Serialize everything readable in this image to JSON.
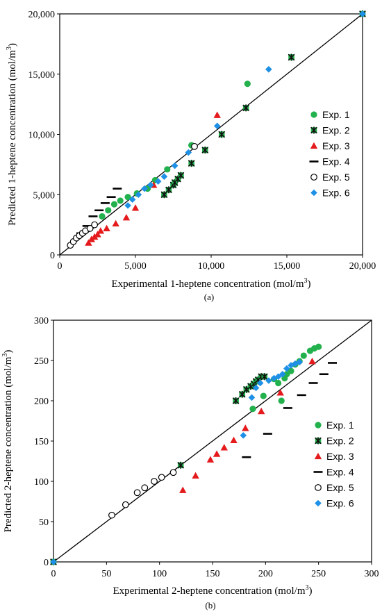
{
  "colors": {
    "exp1": "#22b14c",
    "exp2": "#22b14c",
    "exp3": "#e41a1c",
    "exp4": "#000000",
    "exp5": "#000000",
    "exp6": "#1e90e6"
  },
  "chart_data": [
    {
      "type": "scatter",
      "caption": "(a)",
      "xlabel_main": "Experimental 1-heptene concentration (mol/m",
      "xlabel_sup": "3",
      "ylabel_main": "Predicted 1-heptene concentration (mol/m",
      "ylabel_sup": "3",
      "xlim": [
        0,
        20000
      ],
      "ylim": [
        0,
        20000
      ],
      "xticks": [
        0,
        5000,
        10000,
        15000,
        20000
      ],
      "yticks": [
        0,
        5000,
        10000,
        15000,
        20000
      ],
      "xtick_labels": [
        "0",
        "5,000",
        "10,000",
        "15,000",
        "20,000"
      ],
      "ytick_labels": [
        "0",
        "5,000",
        "10,000",
        "15,000",
        "20,000"
      ],
      "grid": false,
      "legend": "right",
      "parity_line": [
        [
          0,
          0
        ],
        [
          20000,
          20000
        ]
      ],
      "series": [
        {
          "name": "Exp. 1",
          "marker": "circle",
          "color_key": "exp1",
          "points": [
            [
              2800,
              3200
            ],
            [
              3200,
              3700
            ],
            [
              3600,
              4200
            ],
            [
              4000,
              4500
            ],
            [
              4500,
              4800
            ],
            [
              5100,
              5100
            ],
            [
              5800,
              5500
            ],
            [
              6300,
              6200
            ],
            [
              7100,
              7100
            ],
            [
              8700,
              9100
            ],
            [
              12400,
              14200
            ]
          ]
        },
        {
          "name": "Exp. 2",
          "marker": "xsquare",
          "color_key": "exp2",
          "points": [
            [
              6900,
              5000
            ],
            [
              7200,
              5400
            ],
            [
              7500,
              5800
            ],
            [
              7600,
              6000
            ],
            [
              7800,
              6300
            ],
            [
              8000,
              6600
            ],
            [
              8700,
              7600
            ],
            [
              9600,
              8700
            ],
            [
              10700,
              10000
            ],
            [
              12300,
              12200
            ],
            [
              15300,
              16400
            ],
            [
              20000,
              20000
            ]
          ]
        },
        {
          "name": "Exp. 3",
          "marker": "triangle",
          "color_key": "exp3",
          "points": [
            [
              1900,
              1000
            ],
            [
              2100,
              1300
            ],
            [
              2300,
              1500
            ],
            [
              2500,
              1700
            ],
            [
              2700,
              2000
            ],
            [
              3100,
              2200
            ],
            [
              3700,
              2600
            ],
            [
              4400,
              3100
            ],
            [
              5000,
              3900
            ],
            [
              6200,
              5800
            ],
            [
              10400,
              11600
            ]
          ]
        },
        {
          "name": "Exp. 4",
          "marker": "dash",
          "color_key": "exp4",
          "points": [
            [
              1400,
              1800
            ],
            [
              1800,
              2400
            ],
            [
              2200,
              3200
            ],
            [
              2600,
              3700
            ],
            [
              3000,
              4300
            ],
            [
              3400,
              4800
            ],
            [
              3800,
              5500
            ]
          ]
        },
        {
          "name": "Exp. 5",
          "marker": "ocircle",
          "color_key": "exp5",
          "points": [
            [
              700,
              800
            ],
            [
              900,
              1100
            ],
            [
              1100,
              1400
            ],
            [
              1300,
              1600
            ],
            [
              1500,
              1800
            ],
            [
              1700,
              2000
            ],
            [
              2000,
              2200
            ],
            [
              2300,
              2500
            ],
            [
              8900,
              9000
            ]
          ]
        },
        {
          "name": "Exp. 6",
          "marker": "diamond",
          "color_key": "exp6",
          "points": [
            [
              4500,
              4100
            ],
            [
              4800,
              4600
            ],
            [
              5200,
              5000
            ],
            [
              5600,
              5500
            ],
            [
              6000,
              5800
            ],
            [
              6500,
              6100
            ],
            [
              6900,
              6500
            ],
            [
              7600,
              7400
            ],
            [
              8500,
              8500
            ],
            [
              10400,
              10700
            ],
            [
              13800,
              15400
            ],
            [
              20000,
              20000
            ]
          ]
        }
      ]
    },
    {
      "type": "scatter",
      "caption": "(b)",
      "xlabel_main": "Experimental 2-heptene concentration (mol/m",
      "xlabel_sup": "3",
      "ylabel_main": "Predicted 2-heptene concentration (mol/m",
      "ylabel_sup": "3",
      "xlim": [
        0,
        300
      ],
      "ylim": [
        0,
        300
      ],
      "xticks": [
        0,
        50,
        100,
        150,
        200,
        250,
        300
      ],
      "yticks": [
        0,
        50,
        100,
        150,
        200,
        250,
        300
      ],
      "xtick_labels": [
        "0",
        "50",
        "100",
        "150",
        "200",
        "250",
        "300"
      ],
      "ytick_labels": [
        "0",
        "50",
        "100",
        "150",
        "200",
        "250",
        "300"
      ],
      "grid": false,
      "legend": "right",
      "parity_line": [
        [
          0,
          0
        ],
        [
          300,
          300
        ]
      ],
      "series": [
        {
          "name": "Exp. 1",
          "marker": "circle",
          "color_key": "exp1",
          "points": [
            [
              188,
              190
            ],
            [
              198,
              206
            ],
            [
              208,
              227
            ],
            [
              212,
              222
            ],
            [
              215,
              200
            ],
            [
              218,
              228
            ],
            [
              220,
              233
            ],
            [
              224,
              237
            ],
            [
              228,
              245
            ],
            [
              232,
              249
            ],
            [
              236,
              256
            ],
            [
              242,
              262
            ],
            [
              246,
              265
            ],
            [
              250,
              267
            ]
          ]
        },
        {
          "name": "Exp. 2",
          "marker": "xsquare",
          "color_key": "exp2",
          "points": [
            [
              0,
              0
            ],
            [
              120,
              120
            ],
            [
              172,
              200
            ],
            [
              178,
              208
            ],
            [
              182,
              214
            ],
            [
              186,
              218
            ],
            [
              189,
              221
            ],
            [
              191,
              224
            ],
            [
              193,
              226
            ],
            [
              196,
              230
            ],
            [
              199,
              230
            ]
          ]
        },
        {
          "name": "Exp. 3",
          "marker": "triangle",
          "color_key": "exp3",
          "points": [
            [
              122,
              89
            ],
            [
              134,
              107
            ],
            [
              148,
              127
            ],
            [
              154,
              134
            ],
            [
              161,
              142
            ],
            [
              170,
              151
            ],
            [
              181,
              166
            ],
            [
              196,
              187
            ],
            [
              214,
              210
            ],
            [
              244,
              249
            ]
          ]
        },
        {
          "name": "Exp. 4",
          "marker": "dash",
          "color_key": "exp4",
          "points": [
            [
              182,
              130
            ],
            [
              202,
              159
            ],
            [
              221,
              191
            ],
            [
              234,
              207
            ],
            [
              245,
              222
            ],
            [
              255,
              233
            ],
            [
              263,
              247
            ]
          ]
        },
        {
          "name": "Exp. 5",
          "marker": "ocircle",
          "color_key": "exp5",
          "points": [
            [
              55,
              58
            ],
            [
              68,
              71
            ],
            [
              79,
              86
            ],
            [
              86,
              92
            ],
            [
              95,
              100
            ],
            [
              102,
              105
            ],
            [
              113,
              111
            ]
          ]
        },
        {
          "name": "Exp. 6",
          "marker": "diamond",
          "color_key": "exp6",
          "points": [
            [
              0,
              0
            ],
            [
              179,
              157
            ],
            [
              187,
              204
            ],
            [
              191,
              216
            ],
            [
              195,
              222
            ],
            [
              203,
              225
            ],
            [
              208,
              228
            ],
            [
              212,
              230
            ],
            [
              216,
              233
            ],
            [
              220,
              240
            ],
            [
              224,
              244
            ],
            [
              228,
              246
            ],
            [
              232,
              248
            ]
          ]
        }
      ]
    }
  ]
}
